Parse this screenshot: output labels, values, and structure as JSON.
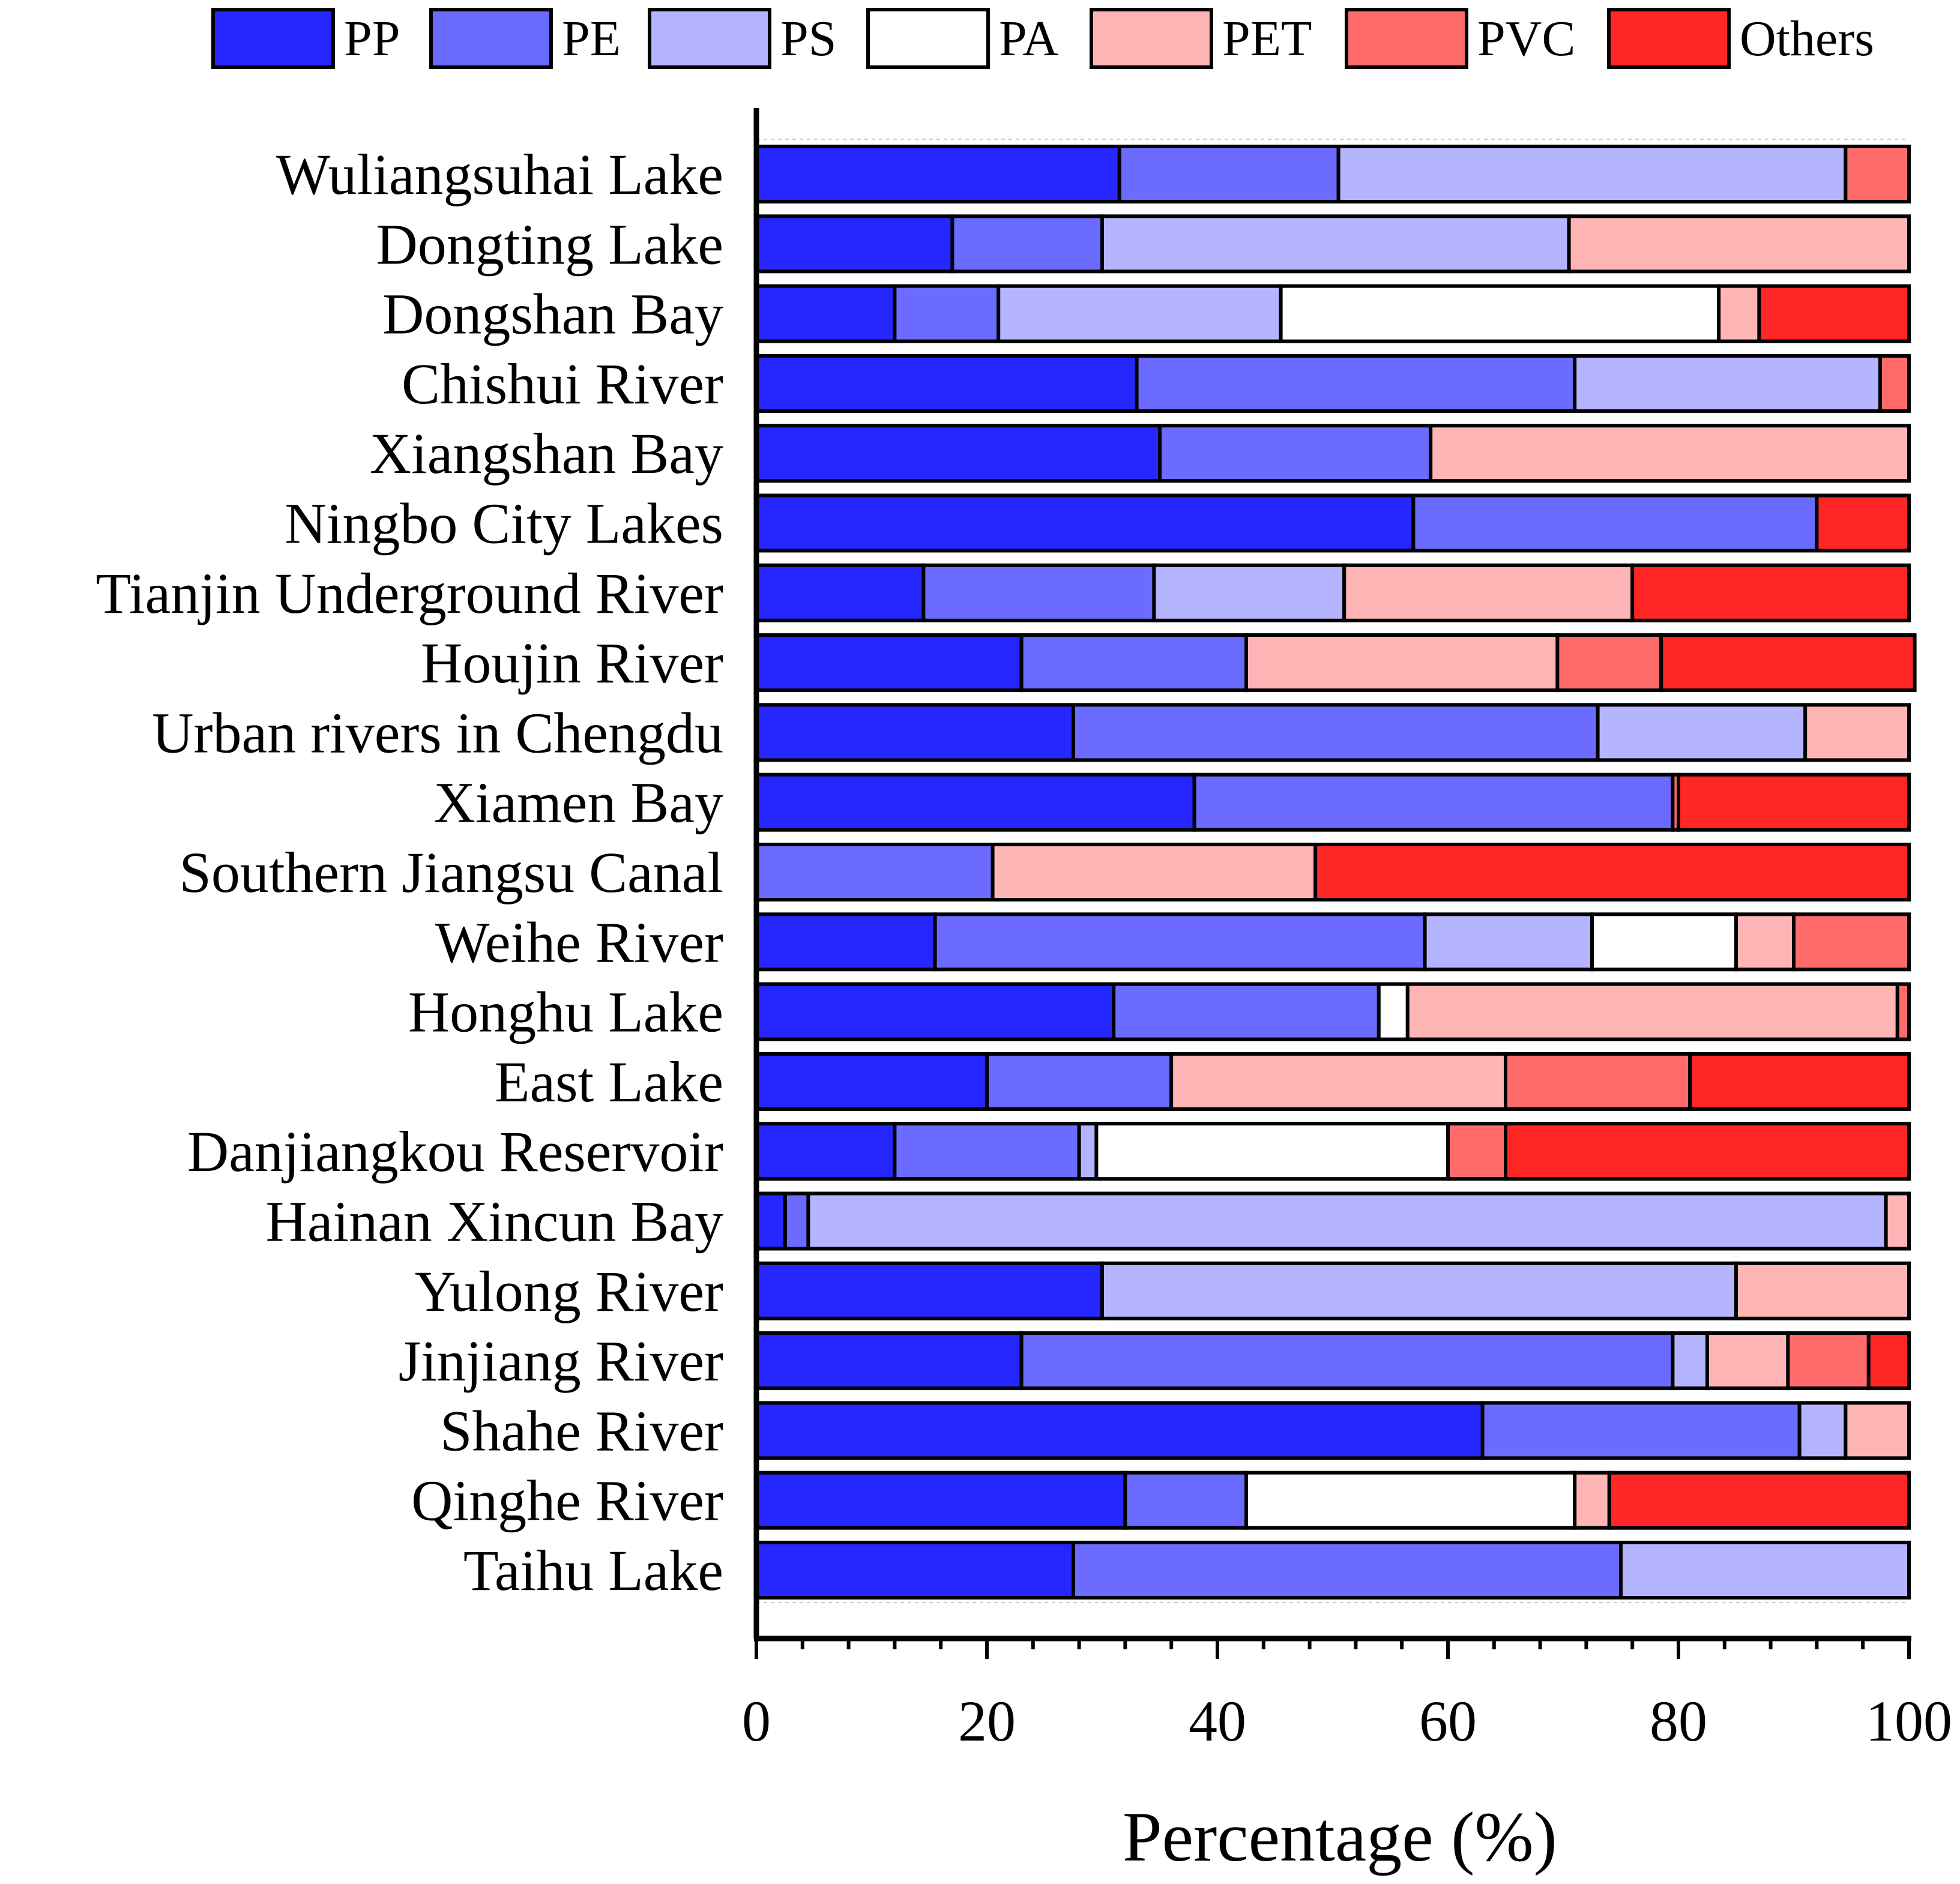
{
  "chart_data": {
    "type": "bar",
    "orientation": "horizontal",
    "stacked": true,
    "title": "",
    "xlabel": "Percentage (%)",
    "ylabel": "",
    "xlim": [
      0,
      100
    ],
    "x_ticks": [
      "0",
      "20",
      "40",
      "60",
      "80",
      "100"
    ],
    "legend_position": "top",
    "grid": false,
    "categories": [
      "Wuliangsuhai Lake",
      "Dongting Lake",
      "Dongshan Bay",
      "Chishui River",
      "Xiangshan Bay",
      "Ningbo City Lakes",
      "Tianjin Underground River",
      "Houjin River",
      "Urban rivers in Chengdu",
      "Xiamen Bay",
      "Southern Jiangsu Canal",
      "Weihe River",
      "Honghu Lake",
      "East Lake",
      "Danjiangkou Reservoir",
      "Hainan Xincun Bay",
      "Yulong River",
      "Jinjiang River",
      "Shahe River",
      "Qinghe River",
      "Taihu Lake"
    ],
    "series": [
      {
        "name": "PP",
        "color": "#2626ff",
        "values": [
          31.5,
          17,
          12,
          33,
          35,
          57,
          14.5,
          23,
          27.5,
          38,
          0,
          15.5,
          31,
          20,
          12,
          2.5,
          30,
          23,
          63,
          32,
          27.5
        ]
      },
      {
        "name": "PE",
        "color": "#6b6bff",
        "values": [
          19,
          13,
          9,
          38,
          23.5,
          35,
          20,
          19.5,
          45.5,
          41.5,
          20.5,
          42.5,
          23,
          16,
          16,
          2,
          0,
          56.5,
          27.5,
          10.5,
          47.5
        ]
      },
      {
        "name": "PS",
        "color": "#b5b5ff",
        "values": [
          44,
          40.5,
          24.5,
          26.5,
          0,
          0,
          16.5,
          0,
          18,
          0,
          0,
          14.5,
          0,
          0,
          1.5,
          93.5,
          55,
          3,
          4,
          0,
          25
        ]
      },
      {
        "name": "PA",
        "color": "#ffffff",
        "values": [
          0,
          0,
          38,
          0,
          0,
          0,
          0,
          0,
          0,
          0,
          0,
          12.5,
          2.5,
          0,
          30.5,
          0,
          0,
          0,
          0,
          28.5,
          0
        ]
      },
      {
        "name": "PET",
        "color": "#ffb5b5",
        "values": [
          0,
          29.5,
          3.5,
          0,
          41.5,
          0,
          25,
          27,
          9,
          0,
          28,
          5,
          42.5,
          29,
          0,
          2,
          15,
          7,
          5.5,
          3,
          0
        ]
      },
      {
        "name": "PVC",
        "color": "#ff6b6b",
        "values": [
          5.5,
          0,
          0,
          2.5,
          0,
          0,
          0,
          9,
          0,
          0.5,
          0,
          10,
          1,
          16,
          5,
          0,
          0,
          7,
          0,
          0,
          0
        ]
      },
      {
        "name": "Others",
        "color": "#ff2626",
        "values": [
          0,
          0,
          13,
          0,
          0,
          8,
          24,
          22,
          0,
          20,
          51.5,
          0,
          0,
          19,
          35,
          0,
          0,
          3.5,
          0,
          26,
          0
        ]
      }
    ]
  }
}
